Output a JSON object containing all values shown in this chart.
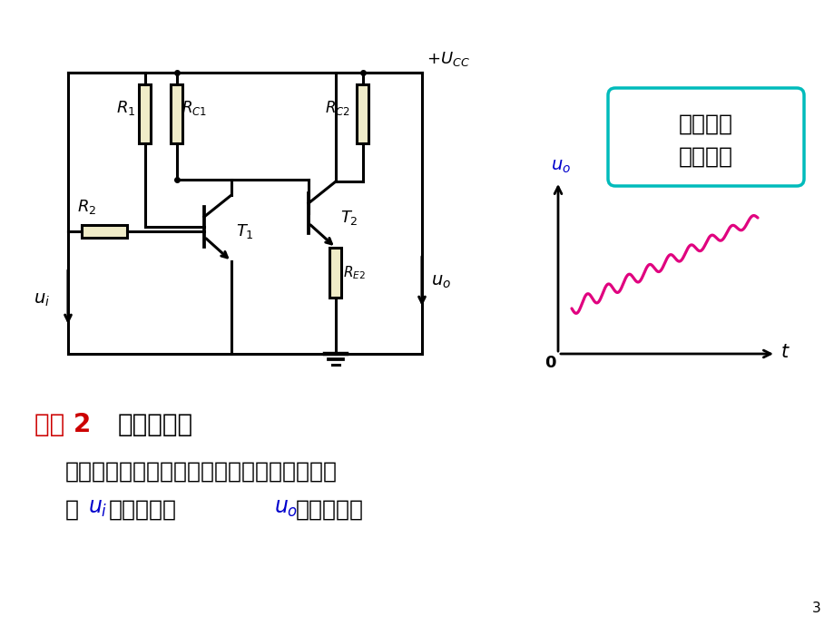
{
  "bg_color": "#ffffff",
  "circuit_color": "#000000",
  "resistor_fill": "#f0ecc8",
  "signal_color": "#e0007f",
  "title_red": "#cc0000",
  "label_blue": "#0000cc",
  "box_border": "#00bbbb",
  "text_black": "#000000",
  "page_num": "3",
  "box_text1": "有时会将",
  "box_text2": "信号淡没",
  "heading_red_cn": "问题",
  "heading_black_cn": "：零点漂移",
  "body_line1": "前一级的温漂将作为后一级的输入信号，使得",
  "body_line2_pre": "当",
  "body_line2_mid": "等于零时，",
  "body_line2_end": "不等于零。"
}
